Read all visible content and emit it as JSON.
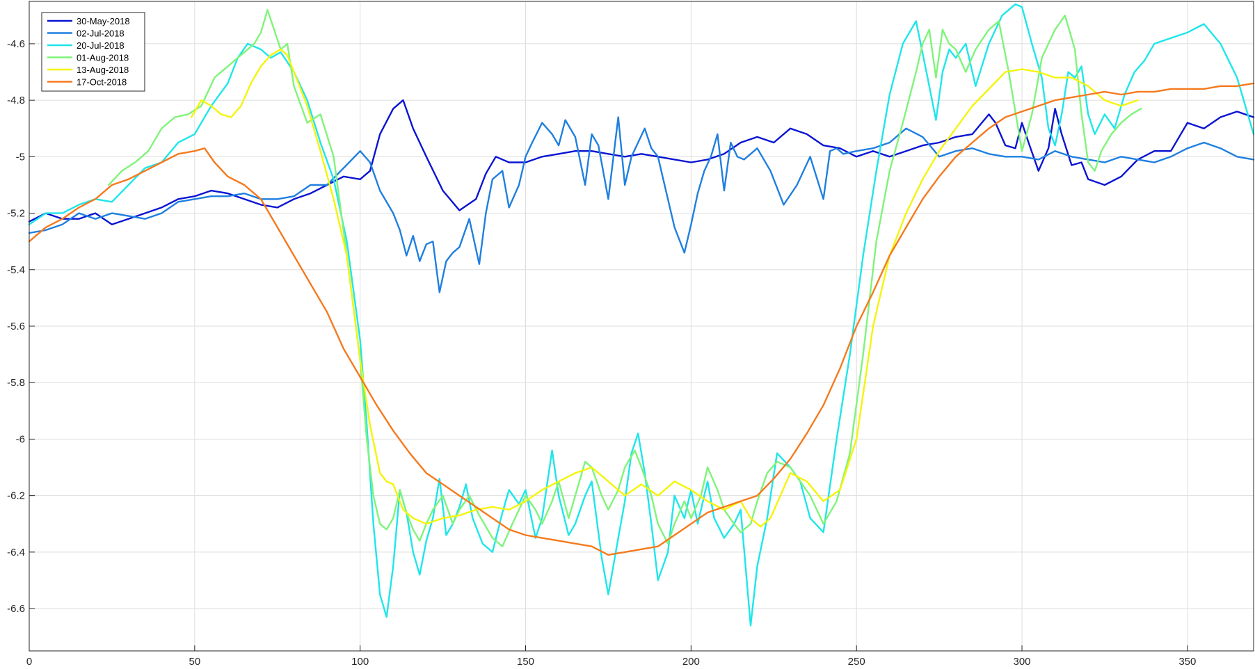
{
  "chart_data": {
    "type": "line",
    "title": "",
    "xlabel": "",
    "ylabel": "",
    "xlim": [
      0,
      370
    ],
    "ylim": [
      -6.75,
      -4.45
    ],
    "xticks": [
      0,
      50,
      100,
      150,
      200,
      250,
      300,
      350
    ],
    "yticks": [
      -6.6,
      -6.4,
      -6.2,
      -6,
      -5.8,
      -5.6,
      -5.4,
      -5.2,
      -5,
      -4.8,
      -4.6
    ],
    "grid": true,
    "legend_position": "top-left",
    "series": [
      {
        "name": "30-May-2018",
        "color": "#0a14d2",
        "x": [
          0,
          5,
          10,
          15,
          20,
          25,
          30,
          35,
          40,
          45,
          50,
          55,
          60,
          65,
          70,
          75,
          80,
          85,
          90,
          95,
          100,
          103,
          106,
          110,
          113,
          116,
          120,
          125,
          130,
          135,
          138,
          141,
          145,
          150,
          155,
          160,
          165,
          170,
          175,
          180,
          185,
          190,
          195,
          200,
          205,
          210,
          215,
          220,
          225,
          230,
          235,
          240,
          245,
          250,
          255,
          260,
          265,
          270,
          275,
          280,
          285,
          290,
          292,
          295,
          298,
          300,
          302,
          305,
          308,
          310,
          312,
          315,
          318,
          320,
          325,
          330,
          335,
          340,
          345,
          350,
          355,
          360,
          365,
          370
        ],
        "y": [
          -5.23,
          -5.2,
          -5.22,
          -5.22,
          -5.2,
          -5.24,
          -5.22,
          -5.2,
          -5.18,
          -5.15,
          -5.14,
          -5.12,
          -5.13,
          -5.15,
          -5.17,
          -5.18,
          -5.15,
          -5.13,
          -5.1,
          -5.07,
          -5.08,
          -5.05,
          -4.92,
          -4.83,
          -4.8,
          -4.9,
          -5.0,
          -5.12,
          -5.19,
          -5.15,
          -5.06,
          -5.0,
          -5.02,
          -5.02,
          -5.0,
          -4.99,
          -4.98,
          -4.98,
          -4.99,
          -5.0,
          -4.99,
          -5.0,
          -5.01,
          -5.02,
          -5.01,
          -4.99,
          -4.95,
          -4.93,
          -4.95,
          -4.9,
          -4.92,
          -4.96,
          -4.97,
          -5.0,
          -4.98,
          -5.0,
          -4.98,
          -4.96,
          -4.95,
          -4.93,
          -4.92,
          -4.85,
          -4.88,
          -4.96,
          -4.97,
          -4.88,
          -4.95,
          -5.05,
          -4.97,
          -4.83,
          -4.92,
          -5.03,
          -5.02,
          -5.08,
          -5.1,
          -5.07,
          -5.01,
          -4.98,
          -4.98,
          -4.88,
          -4.9,
          -4.86,
          -4.84,
          -4.86
        ]
      },
      {
        "name": "02-Jul-2018",
        "color": "#1f7fe0",
        "x": [
          0,
          5,
          10,
          15,
          20,
          25,
          30,
          35,
          40,
          45,
          50,
          55,
          60,
          65,
          70,
          75,
          80,
          85,
          90,
          95,
          100,
          103,
          106,
          110,
          112,
          114,
          116,
          118,
          120,
          122,
          124,
          126,
          128,
          130,
          133,
          136,
          138,
          140,
          143,
          145,
          148,
          150,
          152,
          155,
          158,
          160,
          162,
          165,
          168,
          170,
          172,
          175,
          178,
          180,
          182,
          184,
          186,
          188,
          190,
          192,
          195,
          198,
          200,
          202,
          204,
          206,
          208,
          210,
          212,
          214,
          216,
          220,
          224,
          228,
          232,
          236,
          240,
          242,
          244,
          246,
          250,
          255,
          260,
          265,
          270,
          275,
          280,
          285,
          290,
          295,
          300,
          305,
          310,
          315,
          320,
          325,
          330,
          335,
          340,
          345,
          350,
          355,
          360,
          365,
          370
        ],
        "y": [
          -5.27,
          -5.26,
          -5.24,
          -5.2,
          -5.22,
          -5.2,
          -5.21,
          -5.22,
          -5.2,
          -5.16,
          -5.15,
          -5.14,
          -5.14,
          -5.13,
          -5.15,
          -5.15,
          -5.14,
          -5.1,
          -5.1,
          -5.04,
          -4.98,
          -5.02,
          -5.12,
          -5.2,
          -5.26,
          -5.35,
          -5.28,
          -5.37,
          -5.31,
          -5.3,
          -5.48,
          -5.37,
          -5.34,
          -5.32,
          -5.22,
          -5.38,
          -5.2,
          -5.08,
          -5.05,
          -5.18,
          -5.1,
          -5.0,
          -4.95,
          -4.88,
          -4.92,
          -4.96,
          -4.87,
          -4.93,
          -5.1,
          -4.92,
          -4.96,
          -5.15,
          -4.86,
          -5.1,
          -5.0,
          -4.95,
          -4.9,
          -4.97,
          -5.0,
          -5.1,
          -5.25,
          -5.34,
          -5.24,
          -5.13,
          -5.05,
          -5.0,
          -4.92,
          -5.12,
          -4.95,
          -5.0,
          -5.01,
          -4.97,
          -5.05,
          -5.17,
          -5.1,
          -5.0,
          -5.15,
          -4.98,
          -4.97,
          -4.99,
          -4.98,
          -4.97,
          -4.95,
          -4.9,
          -4.93,
          -5.0,
          -4.98,
          -4.97,
          -4.99,
          -5.0,
          -5.0,
          -5.01,
          -4.98,
          -5.0,
          -5.01,
          -5.02,
          -5.0,
          -5.01,
          -5.02,
          -5.0,
          -4.97,
          -4.95,
          -4.97,
          -5.0,
          -5.01
        ]
      },
      {
        "name": "20-Jul-2018",
        "color": "#1ee6ea",
        "x": [
          0,
          5,
          10,
          15,
          20,
          25,
          30,
          35,
          40,
          45,
          50,
          55,
          60,
          63,
          66,
          70,
          73,
          76,
          80,
          84,
          88,
          92,
          96,
          100,
          102,
          104,
          106,
          108,
          110,
          112,
          114,
          116,
          118,
          120,
          122,
          124,
          126,
          128,
          130,
          132,
          134,
          137,
          140,
          143,
          145,
          148,
          150,
          153,
          155,
          158,
          160,
          163,
          165,
          168,
          170,
          173,
          175,
          178,
          180,
          182,
          184,
          186,
          188,
          190,
          193,
          195,
          198,
          200,
          202,
          205,
          207,
          210,
          213,
          215,
          218,
          220,
          223,
          226,
          230,
          233,
          236,
          240,
          244,
          248,
          252,
          256,
          260,
          264,
          268,
          272,
          274,
          276,
          278,
          280,
          283,
          286,
          290,
          294,
          298,
          300,
          303,
          306,
          308,
          310,
          312,
          314,
          316,
          318,
          320,
          322,
          325,
          328,
          331,
          334,
          337,
          340,
          345,
          350,
          355,
          360,
          365,
          370
        ],
        "y": [
          -5.24,
          -5.2,
          -5.2,
          -5.17,
          -5.15,
          -5.16,
          -5.1,
          -5.04,
          -5.02,
          -4.95,
          -4.92,
          -4.82,
          -4.74,
          -4.65,
          -4.6,
          -4.62,
          -4.65,
          -4.63,
          -4.7,
          -4.8,
          -4.95,
          -5.08,
          -5.3,
          -5.65,
          -5.95,
          -6.3,
          -6.55,
          -6.63,
          -6.45,
          -6.18,
          -6.26,
          -6.4,
          -6.48,
          -6.36,
          -6.28,
          -6.14,
          -6.34,
          -6.3,
          -6.24,
          -6.16,
          -6.28,
          -6.37,
          -6.4,
          -6.26,
          -6.18,
          -6.23,
          -6.18,
          -6.35,
          -6.28,
          -6.04,
          -6.2,
          -6.34,
          -6.3,
          -6.2,
          -6.15,
          -6.42,
          -6.55,
          -6.35,
          -6.22,
          -6.05,
          -5.98,
          -6.12,
          -6.3,
          -6.5,
          -6.4,
          -6.2,
          -6.28,
          -6.18,
          -6.3,
          -6.15,
          -6.28,
          -6.35,
          -6.3,
          -6.25,
          -6.66,
          -6.45,
          -6.28,
          -6.05,
          -6.1,
          -6.15,
          -6.28,
          -6.33,
          -6.0,
          -5.7,
          -5.35,
          -5.05,
          -4.78,
          -4.6,
          -4.52,
          -4.75,
          -4.87,
          -4.7,
          -4.62,
          -4.65,
          -4.6,
          -4.75,
          -4.6,
          -4.5,
          -4.46,
          -4.47,
          -4.6,
          -4.72,
          -4.9,
          -4.96,
          -4.85,
          -4.7,
          -4.72,
          -4.68,
          -4.85,
          -4.92,
          -4.85,
          -4.9,
          -4.78,
          -4.7,
          -4.66,
          -4.6,
          -4.58,
          -4.56,
          -4.53,
          -4.6,
          -4.72,
          -4.92
        ]
      },
      {
        "name": "01-Aug-2018",
        "color": "#7ff47a",
        "x": [
          24,
          28,
          32,
          36,
          40,
          44,
          48,
          52,
          56,
          60,
          64,
          68,
          70,
          72,
          74,
          76,
          78,
          80,
          84,
          88,
          92,
          96,
          100,
          102,
          104,
          106,
          108,
          110,
          112,
          114,
          116,
          118,
          120,
          122,
          125,
          128,
          130,
          133,
          136,
          140,
          143,
          146,
          150,
          153,
          155,
          158,
          160,
          163,
          165,
          168,
          170,
          173,
          175,
          178,
          180,
          183,
          185,
          188,
          190,
          193,
          195,
          198,
          200,
          203,
          205,
          208,
          210,
          213,
          215,
          218,
          220,
          223,
          226,
          230,
          233,
          236,
          240,
          244,
          248,
          252,
          256,
          260,
          264,
          268,
          270,
          272,
          274,
          276,
          278,
          280,
          283,
          286,
          290,
          293,
          296,
          300,
          303,
          306,
          310,
          313,
          316,
          318,
          320,
          322,
          324,
          327,
          330,
          333,
          336
        ],
        "y": [
          -5.1,
          -5.05,
          -5.02,
          -4.98,
          -4.9,
          -4.86,
          -4.85,
          -4.82,
          -4.72,
          -4.68,
          -4.64,
          -4.6,
          -4.56,
          -4.48,
          -4.55,
          -4.62,
          -4.6,
          -4.75,
          -4.88,
          -4.85,
          -5.0,
          -5.35,
          -5.72,
          -6.0,
          -6.2,
          -6.3,
          -6.32,
          -6.28,
          -6.18,
          -6.26,
          -6.32,
          -6.36,
          -6.3,
          -6.25,
          -6.2,
          -6.3,
          -6.25,
          -6.2,
          -6.27,
          -6.35,
          -6.38,
          -6.3,
          -6.2,
          -6.25,
          -6.3,
          -6.22,
          -6.15,
          -6.28,
          -6.2,
          -6.08,
          -6.1,
          -6.2,
          -6.25,
          -6.18,
          -6.1,
          -6.04,
          -6.1,
          -6.2,
          -6.3,
          -6.37,
          -6.3,
          -6.22,
          -6.28,
          -6.2,
          -6.1,
          -6.18,
          -6.25,
          -6.3,
          -6.33,
          -6.3,
          -6.22,
          -6.12,
          -6.08,
          -6.1,
          -6.15,
          -6.2,
          -6.3,
          -6.22,
          -6.05,
          -5.7,
          -5.3,
          -5.05,
          -4.88,
          -4.7,
          -4.6,
          -4.55,
          -4.72,
          -4.55,
          -4.6,
          -4.62,
          -4.7,
          -4.62,
          -4.55,
          -4.52,
          -4.7,
          -4.98,
          -4.85,
          -4.65,
          -4.55,
          -4.5,
          -4.62,
          -4.85,
          -5.02,
          -5.05,
          -4.98,
          -4.92,
          -4.88,
          -4.85,
          -4.83
        ]
      },
      {
        "name": "13-Aug-2018",
        "color": "#f4f40a",
        "x": [
          49,
          52,
          55,
          58,
          61,
          64,
          67,
          70,
          73,
          76,
          78,
          80,
          84,
          88,
          92,
          96,
          100,
          103,
          106,
          108,
          110,
          113,
          116,
          120,
          125,
          130,
          135,
          140,
          145,
          150,
          155,
          160,
          165,
          170,
          175,
          180,
          185,
          190,
          195,
          200,
          205,
          210,
          215,
          218,
          221,
          224,
          227,
          230,
          235,
          240,
          245,
          250,
          255,
          260,
          265,
          270,
          275,
          280,
          285,
          290,
          295,
          300,
          305,
          310,
          315,
          320,
          325,
          330,
          335
        ],
        "y": [
          -4.86,
          -4.8,
          -4.82,
          -4.85,
          -4.86,
          -4.82,
          -4.74,
          -4.68,
          -4.64,
          -4.62,
          -4.64,
          -4.7,
          -4.82,
          -4.98,
          -5.15,
          -5.35,
          -5.72,
          -5.95,
          -6.12,
          -6.15,
          -6.16,
          -6.25,
          -6.28,
          -6.3,
          -6.28,
          -6.27,
          -6.25,
          -6.24,
          -6.25,
          -6.22,
          -6.18,
          -6.15,
          -6.12,
          -6.1,
          -6.15,
          -6.2,
          -6.16,
          -6.2,
          -6.15,
          -6.18,
          -6.22,
          -6.25,
          -6.22,
          -6.28,
          -6.31,
          -6.28,
          -6.2,
          -6.12,
          -6.15,
          -6.22,
          -6.18,
          -6.0,
          -5.6,
          -5.35,
          -5.2,
          -5.08,
          -4.98,
          -4.9,
          -4.82,
          -4.76,
          -4.7,
          -4.69,
          -4.7,
          -4.72,
          -4.72,
          -4.75,
          -4.8,
          -4.82,
          -4.8
        ]
      },
      {
        "name": "17-Oct-2018",
        "color": "#f57a1e",
        "x": [
          0,
          5,
          10,
          15,
          20,
          25,
          30,
          35,
          40,
          45,
          50,
          53,
          56,
          60,
          65,
          70,
          75,
          80,
          85,
          90,
          95,
          100,
          105,
          110,
          115,
          120,
          125,
          130,
          135,
          140,
          145,
          150,
          155,
          160,
          165,
          170,
          175,
          180,
          185,
          190,
          195,
          200,
          205,
          210,
          215,
          220,
          225,
          230,
          235,
          240,
          245,
          250,
          255,
          260,
          265,
          270,
          275,
          280,
          285,
          290,
          295,
          300,
          305,
          310,
          315,
          320,
          325,
          330,
          335,
          340,
          345,
          350,
          355,
          360,
          365,
          370
        ],
        "y": [
          -5.3,
          -5.25,
          -5.22,
          -5.18,
          -5.15,
          -5.1,
          -5.08,
          -5.05,
          -5.02,
          -4.99,
          -4.98,
          -4.97,
          -5.02,
          -5.07,
          -5.1,
          -5.15,
          -5.25,
          -5.35,
          -5.45,
          -5.55,
          -5.68,
          -5.78,
          -5.88,
          -5.97,
          -6.05,
          -6.12,
          -6.16,
          -6.2,
          -6.24,
          -6.28,
          -6.32,
          -6.34,
          -6.35,
          -6.36,
          -6.37,
          -6.38,
          -6.41,
          -6.4,
          -6.39,
          -6.38,
          -6.34,
          -6.3,
          -6.26,
          -6.24,
          -6.22,
          -6.2,
          -6.14,
          -6.07,
          -5.98,
          -5.88,
          -5.75,
          -5.6,
          -5.48,
          -5.35,
          -5.25,
          -5.15,
          -5.07,
          -5.0,
          -4.95,
          -4.9,
          -4.86,
          -4.84,
          -4.82,
          -4.8,
          -4.79,
          -4.78,
          -4.77,
          -4.78,
          -4.77,
          -4.77,
          -4.76,
          -4.76,
          -4.76,
          -4.75,
          -4.75,
          -4.74
        ]
      }
    ]
  }
}
